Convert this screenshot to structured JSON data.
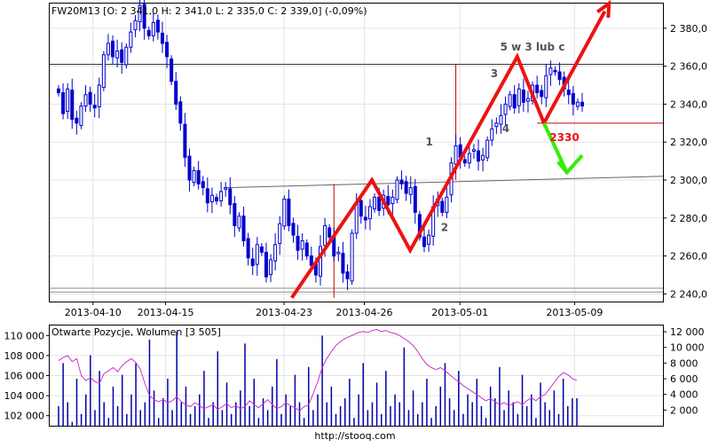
{
  "header": {
    "main": "FW20M13 [O: 2 341,0  H: 2 341,0  L: 2 335,0  C: 2 339,0] (-0,09%)",
    "sub": "Otwarte Pozycje, Wolumen [3 505]"
  },
  "footer": {
    "url": "http://stooq.com"
  },
  "colors": {
    "candle": "#0000cc",
    "volume": "#0000aa",
    "open_interest": "#cc33cc",
    "annotation_red": "#ee1111",
    "annotation_green": "#33ee00",
    "level_line": "#cc0000",
    "trend_line": "#666666"
  },
  "annotations": {
    "waves": [
      "1",
      "2",
      "3",
      "4",
      "5 w 3 lub c"
    ],
    "level": "2330"
  },
  "chart_data": [
    {
      "type": "candlestick",
      "title": "FW20M13",
      "ohlc_last": {
        "open": 2341.0,
        "high": 2341.0,
        "low": 2335.0,
        "close": 2339.0,
        "change_pct": -0.09
      },
      "x_ticks": [
        "2013-04-10",
        "2013-04-15",
        "2013-04-23",
        "2013-04-26",
        "2013-05-01",
        "2013-05-09"
      ],
      "y_ticks": [
        "2 240,0",
        "2 260,0",
        "2 280,0",
        "2 300,0",
        "2 320,0",
        "2 340,0",
        "2 360,0",
        "2 380,0"
      ],
      "ylim": [
        2236,
        2393
      ],
      "path": [
        2346,
        2335,
        2348,
        2332,
        2330,
        2339,
        2345,
        2340,
        2338,
        2350,
        2366,
        2372,
        2365,
        2368,
        2362,
        2370,
        2378,
        2384,
        2392,
        2380,
        2376,
        2383,
        2378,
        2372,
        2365,
        2352,
        2340,
        2330,
        2312,
        2300,
        2305,
        2298,
        2296,
        2288,
        2292,
        2289,
        2294,
        2296,
        2287,
        2276,
        2281,
        2268,
        2259,
        2255,
        2266,
        2262,
        2249,
        2258,
        2266,
        2277,
        2290,
        2276,
        2271,
        2263,
        2268,
        2260,
        2255,
        2250,
        2265,
        2276,
        2270,
        2260,
        2262,
        2251,
        2248,
        2272,
        2288,
        2281,
        2279,
        2286,
        2291,
        2284,
        2292,
        2287,
        2291,
        2300,
        2298,
        2293,
        2296,
        2283,
        2270,
        2265,
        2271,
        2286,
        2290,
        2283,
        2291,
        2309,
        2318,
        2312,
        2309,
        2314,
        2316,
        2310,
        2313,
        2321,
        2327,
        2330,
        2334,
        2340,
        2345,
        2338,
        2348,
        2341,
        2343,
        2350,
        2346,
        2344,
        2355,
        2359,
        2357,
        2353,
        2348,
        2345,
        2340,
        2341,
        2339
      ],
      "levels": [
        {
          "label": "2330",
          "value": 2330
        }
      ],
      "lines": [
        {
          "name": "resistance",
          "value": 2361
        },
        {
          "name": "support",
          "value": 2241
        }
      ],
      "wave_points": [
        {
          "label": "1",
          "value": 2320
        },
        {
          "label": "2",
          "value": 2275
        },
        {
          "label": "3",
          "value": 2356
        },
        {
          "label": "4",
          "value": 2327
        },
        {
          "label": "5 w 3 lub c",
          "value": 2370
        }
      ],
      "scenario_red": [
        2238,
        2300,
        2263,
        2365,
        2330,
        2393
      ],
      "scenario_green": [
        2330,
        2304,
        2313
      ]
    },
    {
      "type": "bar",
      "title": "Otwarte Pozycje, Wolumen [3 505]",
      "left_y_ticks": [
        "102 000",
        "104 000",
        "106 000",
        "108 000",
        "110 000"
      ],
      "left_ylim": [
        101000,
        111000
      ],
      "right_y_ticks": [
        "2 000",
        "4 000",
        "6 000",
        "8 000",
        "10 000",
        "12 000"
      ],
      "right_ylim": [
        0,
        12800
      ],
      "volume": [
        2500,
        8000,
        3000,
        500,
        6000,
        1500,
        4000,
        9000,
        2000,
        7000,
        3000,
        1000,
        5000,
        2500,
        6500,
        1500,
        4000,
        8000,
        2000,
        3000,
        11000,
        4500,
        1000,
        3500,
        6000,
        2000,
        12000,
        3000,
        5000,
        1500,
        2500,
        4000,
        7000,
        1000,
        3000,
        9500,
        2000,
        5500,
        1500,
        3000,
        4500,
        10500,
        2500,
        6000,
        1000,
        3500,
        2000,
        5000,
        8500,
        1500,
        4000,
        2500,
        6500,
        3000,
        1000,
        7500,
        2000,
        4000,
        11500,
        3000,
        5000,
        1500,
        2500,
        3500,
        6000,
        1000,
        4000,
        8000,
        2000,
        3000,
        5500,
        1500,
        7000,
        2500,
        4000,
        3000,
        10000,
        2000,
        4500,
        1500,
        3000,
        6000,
        1000,
        2500,
        5000,
        8000,
        3500,
        2000,
        7000,
        1500,
        4000,
        3000,
        6000,
        2500,
        1000,
        5000,
        3500,
        7500,
        2000,
        4500,
        3000,
        1500,
        6500,
        2500,
        4000,
        1000,
        5500,
        3000,
        2000,
        4500,
        1500,
        6000,
        2500,
        3500,
        3505
      ],
      "open_interest": [
        107500,
        107800,
        108000,
        107400,
        107700,
        106000,
        105500,
        105800,
        105400,
        105200,
        106200,
        106500,
        106800,
        106400,
        107000,
        107400,
        107700,
        107300,
        106600,
        105200,
        104000,
        103600,
        103400,
        103600,
        103300,
        103500,
        103900,
        103400,
        103100,
        102900,
        103300,
        103000,
        102700,
        102900,
        103100,
        102600,
        102900,
        103200,
        102800,
        103000,
        102700,
        102900,
        103500,
        103100,
        102800,
        103200,
        103600,
        103100,
        102700,
        102900,
        103300,
        103000,
        102800,
        102500,
        102900,
        103100,
        104200,
        105400,
        106800,
        107700,
        108400,
        109000,
        109400,
        109700,
        109900,
        110100,
        110300,
        110400,
        110300,
        110500,
        110600,
        110400,
        110500,
        110300,
        110200,
        110000,
        109700,
        109400,
        109000,
        108400,
        107700,
        107100,
        106800,
        106600,
        106800,
        106500,
        106100,
        105700,
        105400,
        105000,
        104700,
        104400,
        104100,
        103800,
        103500,
        103700,
        103400,
        103100,
        103300,
        103000,
        103200,
        103400,
        103100,
        103500,
        103800,
        103500,
        103900,
        104100,
        104700,
        105300,
        105900,
        106300,
        106100,
        105700,
        105500
      ]
    }
  ]
}
